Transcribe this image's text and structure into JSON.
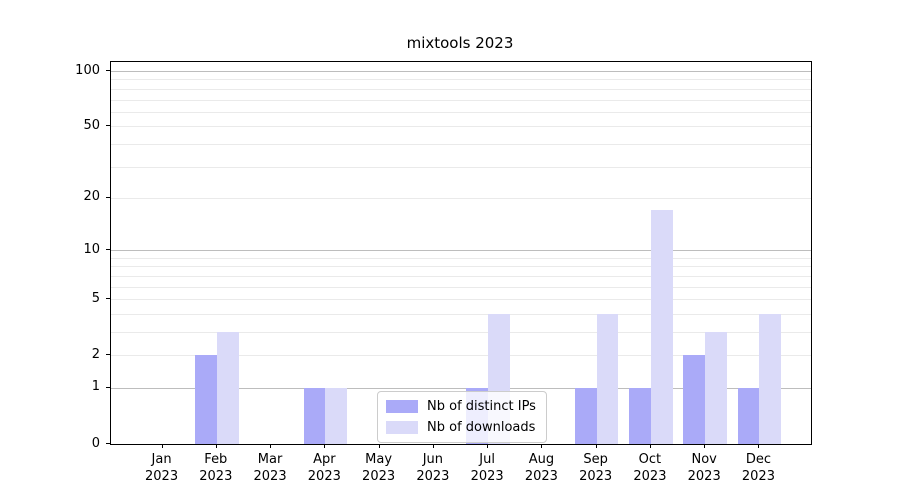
{
  "title": "mixtools 2023",
  "legend": {
    "items": [
      {
        "label": "Nb of distinct IPs",
        "color": "#aaaaf8"
      },
      {
        "label": "Nb of downloads",
        "color": "#dadaf9"
      }
    ]
  },
  "chart_data": {
    "type": "bar",
    "title": "mixtools 2023",
    "categories": [
      "Jan 2023",
      "Feb 2023",
      "Mar 2023",
      "Apr 2023",
      "May 2023",
      "Jun 2023",
      "Jul 2023",
      "Aug 2023",
      "Sep 2023",
      "Oct 2023",
      "Nov 2023",
      "Dec 2023"
    ],
    "month_labels": [
      "Jan",
      "Feb",
      "Mar",
      "Apr",
      "May",
      "Jun",
      "Jul",
      "Aug",
      "Sep",
      "Oct",
      "Nov",
      "Dec"
    ],
    "year_label": "2023",
    "series": [
      {
        "name": "Nb of distinct IPs",
        "color": "#aaaaf8",
        "values": [
          0,
          2,
          0,
          1,
          0,
          0,
          1,
          0,
          1,
          1,
          2,
          1
        ]
      },
      {
        "name": "Nb of downloads",
        "color": "#dadaf9",
        "values": [
          0,
          3,
          0,
          1,
          0,
          0,
          4,
          0,
          4,
          17,
          3,
          4
        ]
      }
    ],
    "xlabel": "",
    "ylabel": "",
    "yscale": "log1p",
    "y_ticks": [
      0,
      1,
      2,
      5,
      10,
      20,
      50,
      100
    ],
    "ylim": [
      0,
      112
    ],
    "xlim": [
      -0.95,
      11.95
    ],
    "grid": {
      "on": true,
      "minor_lines": [
        2,
        3,
        4,
        5,
        6,
        7,
        8,
        9,
        20,
        30,
        40,
        50,
        60,
        70,
        80,
        90
      ],
      "major_lines": [
        1,
        10,
        100
      ]
    },
    "legend_position": "lower-center",
    "bar_unit_width": 0.4
  }
}
